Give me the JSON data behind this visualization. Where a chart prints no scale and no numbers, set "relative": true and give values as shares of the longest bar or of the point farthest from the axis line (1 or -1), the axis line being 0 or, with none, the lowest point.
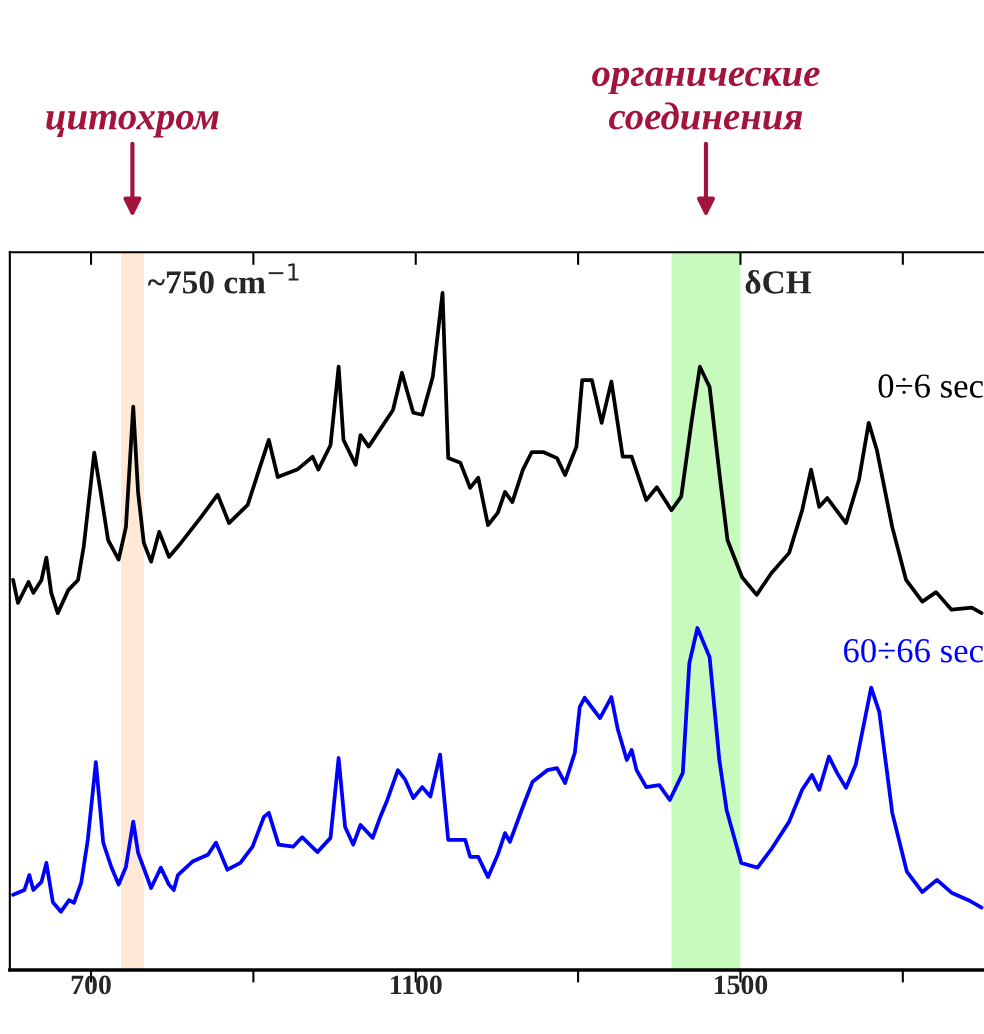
{
  "chart_data": {
    "type": "line",
    "relative": true,
    "xlim": [
      600,
      1800
    ],
    "xticks": [
      700,
      {
        "value": 900,
        "label": null
      },
      1100,
      {
        "value": 1300,
        "label": null
      },
      1500,
      {
        "value": 1700,
        "label": null
      }
    ],
    "tick_labels": "x",
    "grid": false,
    "legend": false,
    "marker": "none",
    "line_style": "solid",
    "bands": [
      {
        "axis": "x",
        "from": 737,
        "to": 765,
        "label": "~750 cm$^{−1}$",
        "color": "#fde9d5"
      },
      {
        "axis": "x",
        "from": 1415,
        "to": 1500,
        "label": "δCH",
        "color": "#c6fbbd"
      }
    ],
    "annotations": [
      "цитохром",
      "органические\nсоединения"
    ],
    "series": [
      {
        "name": "0÷6 sec",
        "color": "#000000",
        "x": [
          604,
          610,
          623,
          629,
          639,
          645,
          651,
          659,
          672,
          684,
          691,
          704,
          712,
          721,
          734,
          743,
          752,
          758,
          765,
          774,
          784,
          796,
          811,
          835,
          856,
          870,
          893,
          919,
          930,
          954,
          973,
          980,
          995,
          1005,
          1011,
          1026,
          1032,
          1042,
          1072,
          1083,
          1090,
          1097,
          1108,
          1121,
          1133,
          1140,
          1155,
          1167,
          1177,
          1189,
          1201,
          1210,
          1219,
          1232,
          1243,
          1257,
          1274,
          1284,
          1298,
          1305,
          1317,
          1329,
          1341,
          1355,
          1366,
          1384,
          1397,
          1415,
          1427,
          1440,
          1450,
          1462,
          1474,
          1484,
          1502,
          1520,
          1538,
          1560,
          1576,
          1587,
          1597,
          1607,
          1630,
          1646,
          1658,
          1668,
          1687,
          1704,
          1724,
          1741,
          1760,
          1785,
          1797
        ],
        "values": [
          0.576,
          0.542,
          0.573,
          0.557,
          0.576,
          0.609,
          0.557,
          0.527,
          0.561,
          0.576,
          0.625,
          0.764,
          0.705,
          0.635,
          0.606,
          0.654,
          0.832,
          0.705,
          0.631,
          0.603,
          0.647,
          0.61,
          0.631,
          0.668,
          0.702,
          0.66,
          0.687,
          0.783,
          0.728,
          0.739,
          0.758,
          0.739,
          0.775,
          0.891,
          0.783,
          0.746,
          0.79,
          0.773,
          0.827,
          0.882,
          0.852,
          0.823,
          0.82,
          0.876,
          1,
          0.756,
          0.749,
          0.712,
          0.727,
          0.657,
          0.675,
          0.706,
          0.691,
          0.739,
          0.765,
          0.765,
          0.756,
          0.731,
          0.773,
          0.871,
          0.871,
          0.808,
          0.869,
          0.758,
          0.758,
          0.694,
          0.713,
          0.679,
          0.699,
          0.812,
          0.891,
          0.861,
          0.734,
          0.635,
          0.58,
          0.554,
          0.586,
          0.616,
          0.679,
          0.739,
          0.684,
          0.697,
          0.66,
          0.724,
          0.808,
          0.768,
          0.654,
          0.576,
          0.544,
          0.558,
          0.532,
          0.535,
          0.527
        ]
      },
      {
        "name": "60÷66 sec",
        "color": "#0000ff",
        "x": [
          604,
          618,
          624,
          629,
          639,
          645,
          653,
          663,
          673,
          679,
          688,
          696,
          706,
          715,
          725,
          734,
          743,
          752,
          758,
          774,
          786,
          796,
          802,
          807,
          825,
          844,
          854,
          868,
          884,
          899,
          913,
          919,
          931,
          949,
          960,
          979,
          995,
          1005,
          1013,
          1023,
          1032,
          1047,
          1056,
          1065,
          1078,
          1087,
          1097,
          1108,
          1118,
          1130,
          1140,
          1161,
          1167,
          1177,
          1189,
          1201,
          1210,
          1216,
          1232,
          1244,
          1262,
          1274,
          1284,
          1296,
          1302,
          1308,
          1327,
          1341,
          1349,
          1360,
          1366,
          1372,
          1384,
          1400,
          1413,
          1429,
          1437,
          1447,
          1462,
          1474,
          1483,
          1501,
          1521,
          1539,
          1560,
          1576,
          1588,
          1597,
          1609,
          1619,
          1630,
          1642,
          1661,
          1671,
          1687,
          1705,
          1724,
          1742,
          1760,
          1781,
          1797
        ],
        "values": [
          0.111,
          0.118,
          0.14,
          0.118,
          0.13,
          0.158,
          0.1,
          0.086,
          0.103,
          0.099,
          0.129,
          0.192,
          0.307,
          0.188,
          0.152,
          0.126,
          0.152,
          0.219,
          0.173,
          0.121,
          0.151,
          0.126,
          0.118,
          0.14,
          0.16,
          0.17,
          0.188,
          0.148,
          0.158,
          0.182,
          0.226,
          0.232,
          0.185,
          0.182,
          0.196,
          0.174,
          0.195,
          0.313,
          0.211,
          0.185,
          0.214,
          0.195,
          0.225,
          0.251,
          0.295,
          0.281,
          0.254,
          0.27,
          0.256,
          0.318,
          0.192,
          0.192,
          0.167,
          0.167,
          0.137,
          0.17,
          0.202,
          0.189,
          0.241,
          0.278,
          0.295,
          0.298,
          0.276,
          0.321,
          0.388,
          0.402,
          0.372,
          0.403,
          0.355,
          0.31,
          0.325,
          0.295,
          0.27,
          0.273,
          0.251,
          0.291,
          0.453,
          0.505,
          0.462,
          0.31,
          0.236,
          0.158,
          0.151,
          0.18,
          0.219,
          0.266,
          0.288,
          0.266,
          0.315,
          0.291,
          0.269,
          0.303,
          0.417,
          0.381,
          0.232,
          0.145,
          0.115,
          0.133,
          0.114,
          0.103,
          0.092
        ]
      }
    ]
  }
}
